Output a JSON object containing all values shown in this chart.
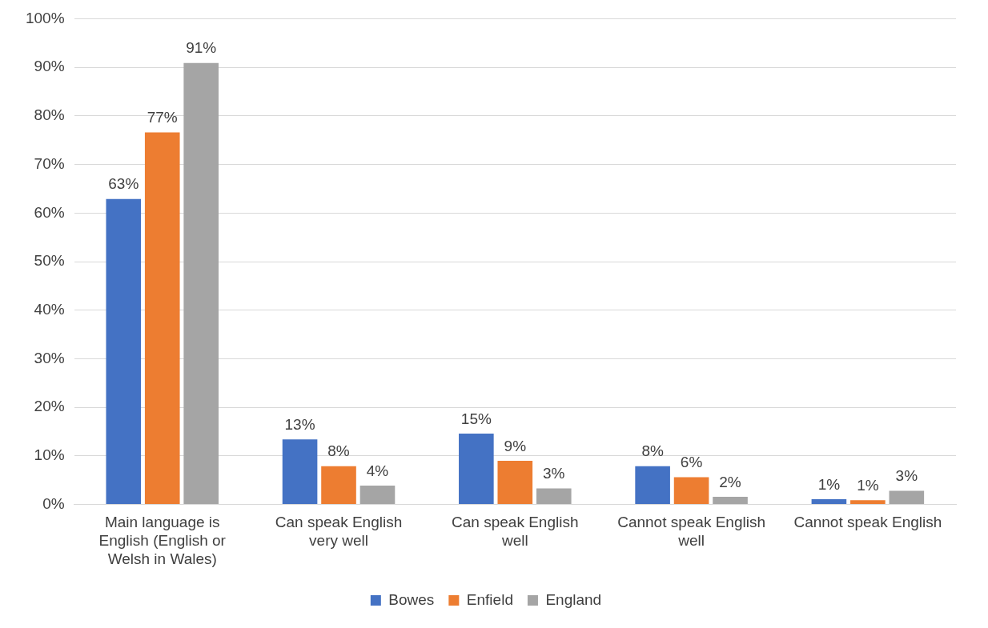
{
  "chart_data": {
    "type": "bar",
    "categories": [
      "Main language is English (English or Welsh in Wales)",
      "Can speak English very well",
      "Can speak English well",
      "Cannot speak English well",
      "Cannot speak English"
    ],
    "series": [
      {
        "name": "Bowes",
        "color": "#4472c4",
        "values": [
          62.9,
          13.4,
          14.6,
          7.9,
          1.1
        ],
        "value_labels": [
          "63%",
          "13%",
          "15%",
          "8%",
          "1%"
        ]
      },
      {
        "name": "Enfield",
        "color": "#ed7d31",
        "values": [
          76.6,
          7.9,
          9.0,
          5.6,
          0.9
        ],
        "value_labels": [
          "77%",
          "8%",
          "9%",
          "6%",
          "1%"
        ]
      },
      {
        "name": "England",
        "color": "#a5a5a5",
        "values": [
          90.9,
          3.9,
          3.3,
          1.6,
          2.8
        ],
        "value_labels": [
          "91%",
          "4%",
          "3%",
          "2%",
          "3%"
        ]
      }
    ],
    "ylim": [
      0,
      100
    ],
    "yticks": [
      {
        "value": 0,
        "label": "0%"
      },
      {
        "value": 10,
        "label": "10%"
      },
      {
        "value": 20,
        "label": "20%"
      },
      {
        "value": 30,
        "label": "30%"
      },
      {
        "value": 40,
        "label": "40%"
      },
      {
        "value": 50,
        "label": "50%"
      },
      {
        "value": 60,
        "label": "60%"
      },
      {
        "value": 70,
        "label": "70%"
      },
      {
        "value": 80,
        "label": "80%"
      },
      {
        "value": 90,
        "label": "90%"
      },
      {
        "value": 100,
        "label": "100%"
      }
    ],
    "grid": "y",
    "legend": "bottom"
  }
}
